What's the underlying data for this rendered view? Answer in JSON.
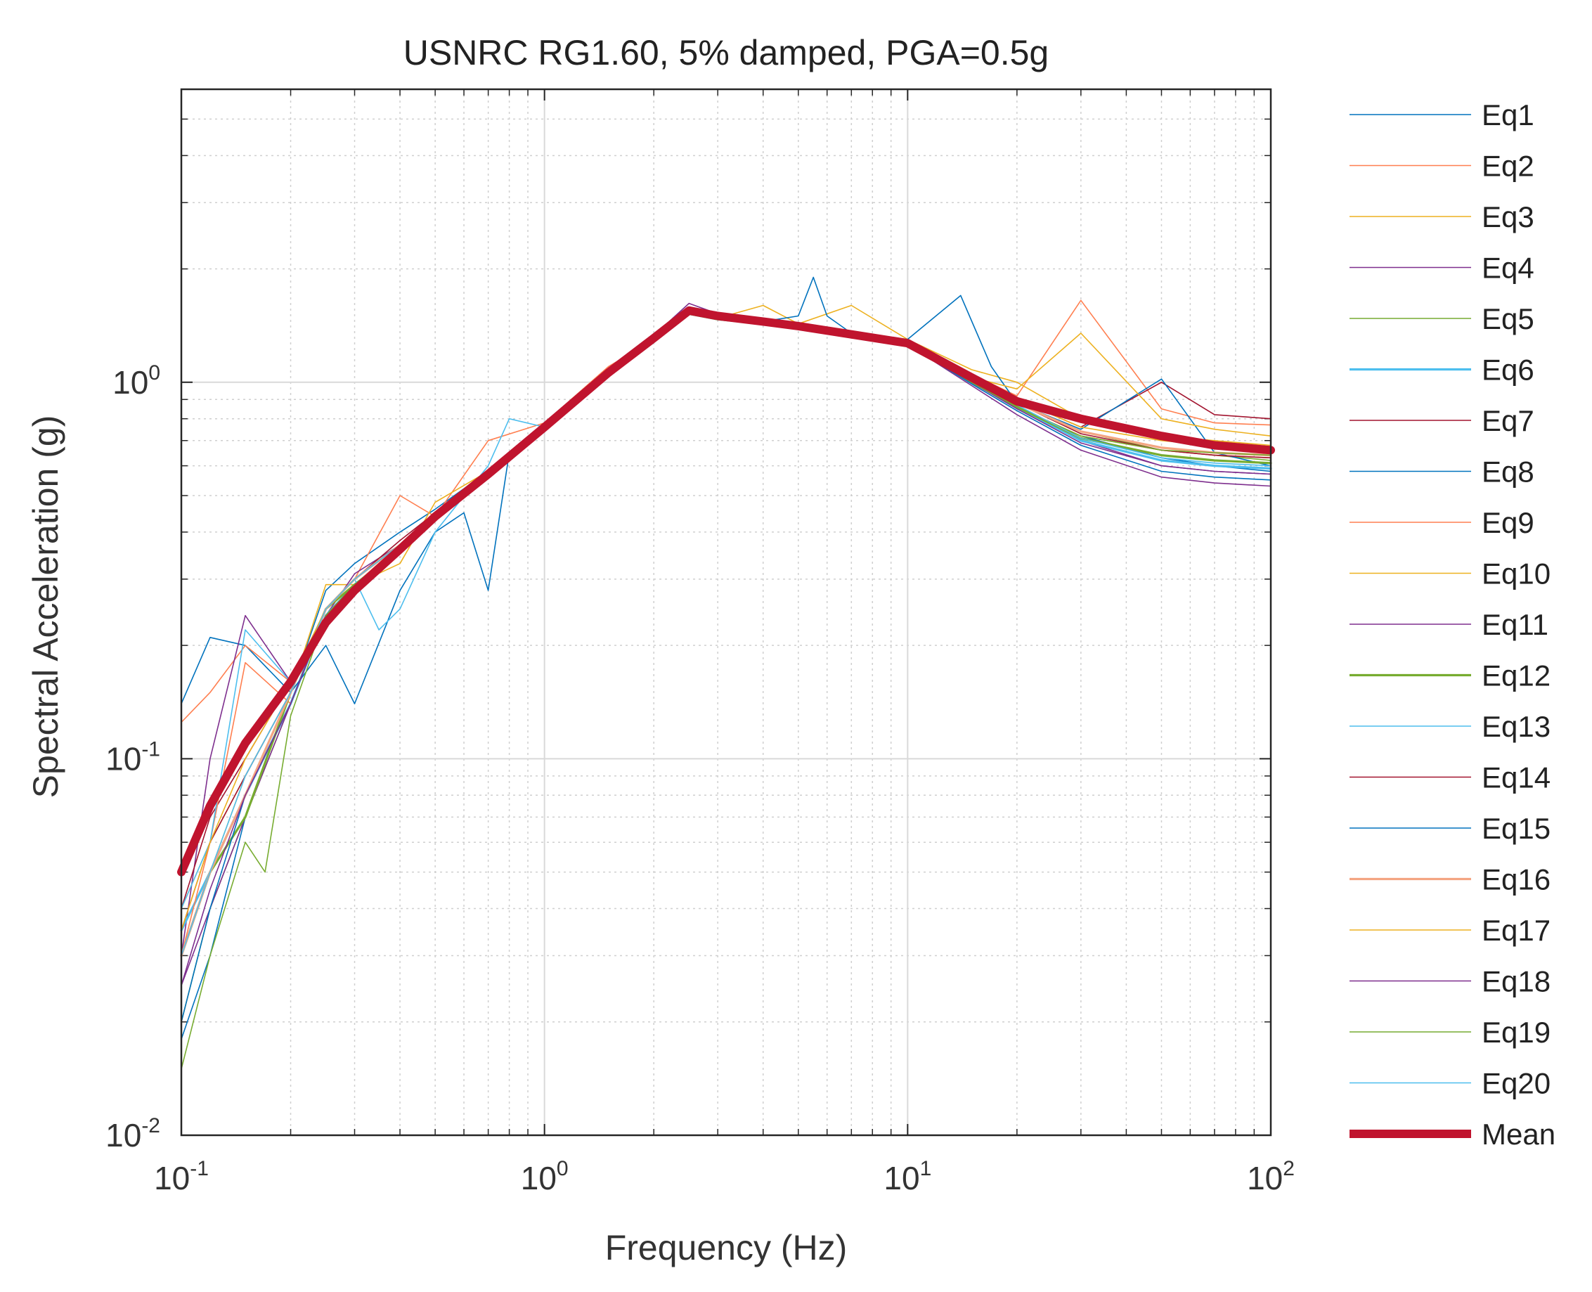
{
  "chart_data": {
    "type": "line",
    "title": "USNRC RG1.60, 5% damped, PGA=0.5g",
    "xlabel": "Frequency (Hz)",
    "ylabel": "Spectral Acceleration (g)",
    "xscale": "log",
    "yscale": "log",
    "xlim": [
      0.1,
      100
    ],
    "ylim": [
      0.01,
      6
    ],
    "grid": true,
    "legend_position": "outside-right",
    "xticks": [
      {
        "value": 0.1,
        "base": "10",
        "exp": "-1"
      },
      {
        "value": 1,
        "base": "10",
        "exp": "0"
      },
      {
        "value": 10,
        "base": "10",
        "exp": "1"
      },
      {
        "value": 100,
        "base": "10",
        "exp": "2"
      }
    ],
    "yticks": [
      {
        "value": 0.01,
        "base": "10",
        "exp": "-2"
      },
      {
        "value": 0.1,
        "base": "10",
        "exp": "-1"
      },
      {
        "value": 1,
        "base": "10",
        "exp": "0"
      }
    ],
    "series": [
      {
        "name": "Eq1",
        "color": "#0072BD",
        "width": 1.6,
        "freq": [
          0.1,
          0.12,
          0.15,
          0.2,
          0.25,
          0.3,
          0.4,
          0.5,
          0.7,
          1,
          1.5,
          2,
          2.5,
          3,
          4,
          5,
          7,
          10,
          15,
          20,
          30,
          50,
          70,
          100
        ],
        "values": [
          0.14,
          0.21,
          0.2,
          0.15,
          0.28,
          0.33,
          0.4,
          0.46,
          0.58,
          0.77,
          1.08,
          1.3,
          1.55,
          1.5,
          1.45,
          1.42,
          1.33,
          1.28,
          1.02,
          0.85,
          0.72,
          0.63,
          0.6,
          0.58
        ]
      },
      {
        "name": "Eq2",
        "color": "#FF7F50",
        "width": 1.6,
        "freq": [
          0.1,
          0.12,
          0.15,
          0.2,
          0.25,
          0.3,
          0.4,
          0.5,
          0.7,
          1,
          1.5,
          2,
          2.5,
          3,
          4,
          5,
          7,
          10,
          15,
          20,
          30,
          50,
          70,
          100
        ],
        "values": [
          0.125,
          0.15,
          0.2,
          0.16,
          0.25,
          0.3,
          0.5,
          0.44,
          0.7,
          0.78,
          1.1,
          1.3,
          1.57,
          1.5,
          1.47,
          1.42,
          1.35,
          1.3,
          1.05,
          0.92,
          1.65,
          0.85,
          0.78,
          0.77
        ]
      },
      {
        "name": "Eq3",
        "color": "#EDB120",
        "width": 1.6,
        "freq": [
          0.1,
          0.12,
          0.15,
          0.2,
          0.25,
          0.3,
          0.4,
          0.5,
          0.7,
          1,
          1.5,
          2,
          2.5,
          3,
          4,
          5,
          7,
          10,
          15,
          20,
          30,
          50,
          70,
          100
        ],
        "values": [
          0.04,
          0.06,
          0.09,
          0.15,
          0.29,
          0.29,
          0.33,
          0.48,
          0.58,
          0.75,
          1.08,
          1.32,
          1.52,
          1.48,
          1.6,
          1.43,
          1.6,
          1.3,
          1.08,
          1.0,
          0.8,
          0.72,
          0.7,
          0.68
        ]
      },
      {
        "name": "Eq4",
        "color": "#7E2F8E",
        "width": 1.6,
        "freq": [
          0.1,
          0.12,
          0.15,
          0.2,
          0.25,
          0.3,
          0.4,
          0.5,
          0.7,
          1,
          1.5,
          2,
          2.5,
          3,
          4,
          5,
          7,
          10,
          15,
          20,
          30,
          50,
          70,
          100
        ],
        "values": [
          0.03,
          0.1,
          0.24,
          0.16,
          0.24,
          0.31,
          0.37,
          0.45,
          0.56,
          0.76,
          1.06,
          1.33,
          1.62,
          1.52,
          1.44,
          1.4,
          1.32,
          1.25,
          1.0,
          0.86,
          0.7,
          0.6,
          0.58,
          0.57
        ]
      },
      {
        "name": "Eq5",
        "color": "#77AC30",
        "width": 1.6,
        "freq": [
          0.1,
          0.12,
          0.15,
          0.2,
          0.25,
          0.3,
          0.4,
          0.5,
          0.7,
          1,
          1.5,
          2,
          2.5,
          3,
          4,
          5,
          7,
          10,
          15,
          20,
          30,
          50,
          70,
          100
        ],
        "values": [
          0.02,
          0.04,
          0.07,
          0.14,
          0.25,
          0.3,
          0.37,
          0.44,
          0.57,
          0.77,
          1.07,
          1.31,
          1.53,
          1.48,
          1.44,
          1.4,
          1.33,
          1.28,
          1.02,
          0.88,
          0.74,
          0.66,
          0.64,
          0.62
        ]
      },
      {
        "name": "Eq6",
        "color": "#4DBEEE",
        "width": 3.2,
        "freq": [
          0.1,
          0.12,
          0.15,
          0.2,
          0.25,
          0.3,
          0.4,
          0.5,
          0.7,
          1,
          1.5,
          2,
          2.5,
          3,
          4,
          5,
          7,
          10,
          15,
          20,
          30,
          50,
          70,
          100
        ],
        "values": [
          0.035,
          0.05,
          0.08,
          0.14,
          0.24,
          0.29,
          0.36,
          0.44,
          0.56,
          0.75,
          1.05,
          1.3,
          1.52,
          1.47,
          1.43,
          1.39,
          1.32,
          1.26,
          1.0,
          0.86,
          0.7,
          0.62,
          0.6,
          0.59
        ]
      },
      {
        "name": "Eq7",
        "color": "#A2142F",
        "width": 1.6,
        "freq": [
          0.1,
          0.12,
          0.15,
          0.2,
          0.25,
          0.3,
          0.4,
          0.5,
          0.7,
          1,
          1.5,
          2,
          2.5,
          3,
          4,
          5,
          7,
          10,
          15,
          20,
          30,
          50,
          70,
          100
        ],
        "values": [
          0.04,
          0.07,
          0.1,
          0.16,
          0.25,
          0.3,
          0.38,
          0.45,
          0.57,
          0.76,
          1.06,
          1.31,
          1.54,
          1.49,
          1.44,
          1.41,
          1.34,
          1.27,
          1.03,
          0.9,
          0.76,
          1.0,
          0.82,
          0.8
        ]
      },
      {
        "name": "Eq8",
        "color": "#0072BD",
        "width": 1.6,
        "freq": [
          0.1,
          0.12,
          0.15,
          0.2,
          0.25,
          0.3,
          0.4,
          0.5,
          0.6,
          0.7,
          0.8,
          1,
          1.5,
          2,
          2.5,
          3,
          4,
          5,
          5.5,
          6,
          7,
          10,
          14,
          17,
          20,
          30,
          50,
          70,
          100
        ],
        "values": [
          0.018,
          0.03,
          0.07,
          0.15,
          0.2,
          0.14,
          0.28,
          0.4,
          0.45,
          0.28,
          0.65,
          0.74,
          1.06,
          1.3,
          1.55,
          1.5,
          1.45,
          1.5,
          1.9,
          1.5,
          1.35,
          1.3,
          1.7,
          1.1,
          0.88,
          0.75,
          1.02,
          0.65,
          0.6
        ]
      },
      {
        "name": "Eq9",
        "color": "#FF7F50",
        "width": 1.6,
        "freq": [
          0.1,
          0.12,
          0.15,
          0.2,
          0.25,
          0.3,
          0.4,
          0.5,
          0.7,
          1,
          1.5,
          2,
          2.5,
          3,
          4,
          5,
          7,
          10,
          15,
          20,
          30,
          50,
          70,
          100
        ],
        "values": [
          0.03,
          0.06,
          0.18,
          0.14,
          0.24,
          0.29,
          0.37,
          0.45,
          0.57,
          0.76,
          1.06,
          1.3,
          1.52,
          1.47,
          1.43,
          1.4,
          1.32,
          1.25,
          1.0,
          0.86,
          0.72,
          0.66,
          0.64,
          0.63
        ]
      },
      {
        "name": "Eq10",
        "color": "#EDB120",
        "width": 1.6,
        "freq": [
          0.1,
          0.12,
          0.15,
          0.2,
          0.25,
          0.3,
          0.4,
          0.5,
          0.7,
          1,
          1.5,
          2,
          2.5,
          3,
          4,
          5,
          7,
          10,
          15,
          20,
          30,
          50,
          70,
          100
        ],
        "values": [
          0.03,
          0.05,
          0.09,
          0.15,
          0.25,
          0.3,
          0.37,
          0.45,
          0.56,
          0.75,
          1.06,
          1.3,
          1.52,
          1.48,
          1.44,
          1.4,
          1.33,
          1.27,
          1.03,
          0.96,
          1.35,
          0.8,
          0.75,
          0.72
        ]
      },
      {
        "name": "Eq11",
        "color": "#7E2F8E",
        "width": 1.6,
        "freq": [
          0.1,
          0.12,
          0.15,
          0.2,
          0.25,
          0.3,
          0.4,
          0.5,
          0.7,
          1,
          1.5,
          2,
          2.5,
          3,
          4,
          5,
          7,
          10,
          15,
          20,
          30,
          50,
          70,
          100
        ],
        "values": [
          0.025,
          0.04,
          0.07,
          0.14,
          0.24,
          0.29,
          0.36,
          0.44,
          0.56,
          0.75,
          1.05,
          1.3,
          1.52,
          1.47,
          1.43,
          1.39,
          1.32,
          1.26,
          0.98,
          0.82,
          0.66,
          0.56,
          0.54,
          0.53
        ]
      },
      {
        "name": "Eq12",
        "color": "#77AC30",
        "width": 3.2,
        "freq": [
          0.1,
          0.12,
          0.15,
          0.2,
          0.25,
          0.3,
          0.4,
          0.5,
          0.7,
          1,
          1.5,
          2,
          2.5,
          3,
          4,
          5,
          7,
          10,
          15,
          20,
          30,
          50,
          70,
          100
        ],
        "values": [
          0.03,
          0.05,
          0.07,
          0.15,
          0.25,
          0.29,
          0.36,
          0.44,
          0.56,
          0.75,
          1.05,
          1.3,
          1.52,
          1.47,
          1.43,
          1.39,
          1.32,
          1.26,
          1.0,
          0.86,
          0.71,
          0.64,
          0.62,
          0.61
        ]
      },
      {
        "name": "Eq13",
        "color": "#4DBEEE",
        "width": 1.6,
        "freq": [
          0.1,
          0.12,
          0.15,
          0.2,
          0.25,
          0.3,
          0.35,
          0.4,
          0.5,
          0.7,
          0.8,
          1,
          1.5,
          2,
          2.5,
          3,
          4,
          5,
          7,
          10,
          15,
          20,
          30,
          50,
          70,
          100
        ],
        "values": [
          0.04,
          0.06,
          0.22,
          0.16,
          0.25,
          0.3,
          0.22,
          0.25,
          0.4,
          0.6,
          0.8,
          0.76,
          1.05,
          1.3,
          1.52,
          1.48,
          1.43,
          1.4,
          1.32,
          1.26,
          1.0,
          0.85,
          0.7,
          0.62,
          0.6,
          0.59
        ]
      },
      {
        "name": "Eq14",
        "color": "#A2142F",
        "width": 1.6,
        "freq": [
          0.1,
          0.12,
          0.15,
          0.2,
          0.25,
          0.3,
          0.4,
          0.5,
          0.7,
          1,
          1.5,
          2,
          2.5,
          3,
          4,
          5,
          7,
          10,
          15,
          20,
          30,
          50,
          70,
          100
        ],
        "values": [
          0.035,
          0.06,
          0.09,
          0.15,
          0.25,
          0.3,
          0.37,
          0.45,
          0.57,
          0.76,
          1.06,
          1.31,
          1.53,
          1.48,
          1.44,
          1.4,
          1.33,
          1.27,
          1.02,
          0.88,
          0.73,
          0.66,
          0.64,
          0.63
        ]
      },
      {
        "name": "Eq15",
        "color": "#0072BD",
        "width": 1.6,
        "freq": [
          0.1,
          0.12,
          0.15,
          0.2,
          0.25,
          0.3,
          0.4,
          0.5,
          0.7,
          1,
          1.5,
          2,
          2.5,
          3,
          4,
          5,
          7,
          10,
          15,
          20,
          30,
          50,
          70,
          100
        ],
        "values": [
          0.02,
          0.04,
          0.08,
          0.14,
          0.24,
          0.29,
          0.36,
          0.44,
          0.56,
          0.75,
          1.05,
          1.3,
          1.52,
          1.47,
          1.43,
          1.39,
          1.32,
          1.26,
          0.99,
          0.84,
          0.68,
          0.58,
          0.56,
          0.55
        ]
      },
      {
        "name": "Eq16",
        "color": "#F4A582",
        "width": 3.2,
        "freq": [
          0.1,
          0.12,
          0.15,
          0.2,
          0.25,
          0.3,
          0.4,
          0.5,
          0.7,
          1,
          1.5,
          2,
          2.5,
          3,
          4,
          5,
          7,
          10,
          15,
          20,
          30,
          50,
          70,
          100
        ],
        "values": [
          0.03,
          0.05,
          0.08,
          0.15,
          0.25,
          0.3,
          0.37,
          0.45,
          0.57,
          0.76,
          1.06,
          1.31,
          1.53,
          1.48,
          1.44,
          1.4,
          1.33,
          1.27,
          1.02,
          0.88,
          0.74,
          0.67,
          0.65,
          0.64
        ]
      },
      {
        "name": "Eq17",
        "color": "#EDB120",
        "width": 1.6,
        "freq": [
          0.1,
          0.12,
          0.15,
          0.2,
          0.25,
          0.3,
          0.4,
          0.5,
          0.7,
          1,
          1.5,
          2,
          2.5,
          3,
          4,
          5,
          7,
          10,
          15,
          20,
          30,
          50,
          70,
          100
        ],
        "values": [
          0.035,
          0.06,
          0.1,
          0.16,
          0.25,
          0.3,
          0.37,
          0.45,
          0.57,
          0.76,
          1.06,
          1.31,
          1.53,
          1.48,
          1.45,
          1.41,
          1.34,
          1.28,
          1.04,
          0.9,
          0.76,
          0.7,
          0.68,
          0.67
        ]
      },
      {
        "name": "Eq18",
        "color": "#7E2F8E",
        "width": 1.6,
        "freq": [
          0.1,
          0.12,
          0.15,
          0.2,
          0.25,
          0.3,
          0.4,
          0.5,
          0.7,
          1,
          1.5,
          2,
          2.5,
          3,
          4,
          5,
          7,
          10,
          15,
          20,
          30,
          50,
          70,
          100
        ],
        "values": [
          0.025,
          0.045,
          0.08,
          0.14,
          0.24,
          0.29,
          0.36,
          0.44,
          0.56,
          0.75,
          1.05,
          1.3,
          1.52,
          1.47,
          1.43,
          1.39,
          1.32,
          1.26,
          1.0,
          0.85,
          0.69,
          0.6,
          0.58,
          0.57
        ]
      },
      {
        "name": "Eq19",
        "color": "#77AC30",
        "width": 1.6,
        "freq": [
          0.1,
          0.12,
          0.15,
          0.17,
          0.2,
          0.25,
          0.3,
          0.4,
          0.5,
          0.7,
          1,
          1.5,
          2,
          2.5,
          3,
          4,
          5,
          7,
          10,
          15,
          20,
          30,
          50,
          70,
          100
        ],
        "values": [
          0.015,
          0.03,
          0.06,
          0.05,
          0.13,
          0.24,
          0.29,
          0.36,
          0.44,
          0.56,
          0.75,
          1.05,
          1.3,
          1.52,
          1.47,
          1.43,
          1.39,
          1.32,
          1.26,
          1.0,
          0.86,
          0.72,
          0.66,
          0.65,
          0.64
        ]
      },
      {
        "name": "Eq20",
        "color": "#4DBEEE",
        "width": 1.6,
        "freq": [
          0.1,
          0.12,
          0.15,
          0.2,
          0.25,
          0.3,
          0.4,
          0.5,
          0.7,
          1,
          1.5,
          2,
          2.5,
          3,
          4,
          5,
          7,
          10,
          15,
          20,
          30,
          50,
          70,
          100
        ],
        "values": [
          0.03,
          0.05,
          0.09,
          0.15,
          0.25,
          0.3,
          0.37,
          0.45,
          0.57,
          0.76,
          1.06,
          1.31,
          1.53,
          1.48,
          1.44,
          1.4,
          1.33,
          1.27,
          1.01,
          0.87,
          0.71,
          0.63,
          0.61,
          0.6
        ]
      },
      {
        "name": "Mean",
        "color": "#C0142E",
        "width": 12,
        "freq": [
          0.1,
          0.12,
          0.15,
          0.2,
          0.25,
          0.3,
          0.4,
          0.5,
          0.7,
          1,
          1.5,
          2,
          2.5,
          3,
          4,
          5,
          7,
          10,
          15,
          20,
          30,
          50,
          70,
          100
        ],
        "values": [
          0.05,
          0.075,
          0.11,
          0.16,
          0.23,
          0.28,
          0.36,
          0.44,
          0.57,
          0.76,
          1.06,
          1.31,
          1.55,
          1.5,
          1.45,
          1.41,
          1.34,
          1.27,
          1.03,
          0.89,
          0.8,
          0.72,
          0.68,
          0.66
        ]
      }
    ]
  }
}
